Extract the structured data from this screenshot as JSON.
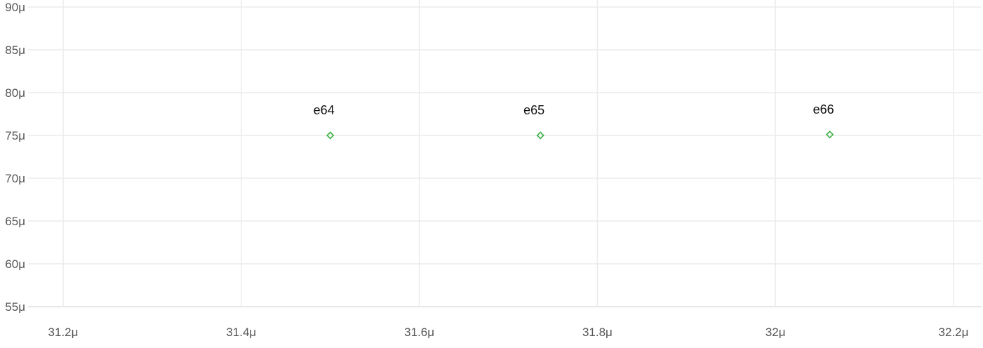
{
  "chart_data": {
    "type": "scatter",
    "title": "",
    "xlabel": "",
    "ylabel": "",
    "xlim": [
      31.15,
      32.22
    ],
    "ylim": [
      52.5,
      90
    ],
    "x_ticks": [
      {
        "value": 31.2,
        "label": "31.2μ"
      },
      {
        "value": 31.4,
        "label": "31.4μ"
      },
      {
        "value": 31.6,
        "label": "31.6μ"
      },
      {
        "value": 31.8,
        "label": "31.8μ"
      },
      {
        "value": 32.0,
        "label": "32μ"
      },
      {
        "value": 32.2,
        "label": "32.2μ"
      }
    ],
    "y_ticks": [
      {
        "value": 55,
        "label": "55μ"
      },
      {
        "value": 60,
        "label": "60μ"
      },
      {
        "value": 65,
        "label": "65μ"
      },
      {
        "value": 70,
        "label": "70μ"
      },
      {
        "value": 75,
        "label": "75μ"
      },
      {
        "value": 80,
        "label": "80μ"
      },
      {
        "value": 85,
        "label": "85μ"
      },
      {
        "value": 90,
        "label": "90μ"
      }
    ],
    "grid": true,
    "marker": {
      "symbol": "diamond-open",
      "color": "#3cb043"
    },
    "points": [
      {
        "label": "e64",
        "x": 31.5,
        "y": 75.0
      },
      {
        "label": "e65",
        "x": 31.736,
        "y": 75.0
      },
      {
        "label": "e66",
        "x": 32.061,
        "y": 75.1
      }
    ]
  }
}
